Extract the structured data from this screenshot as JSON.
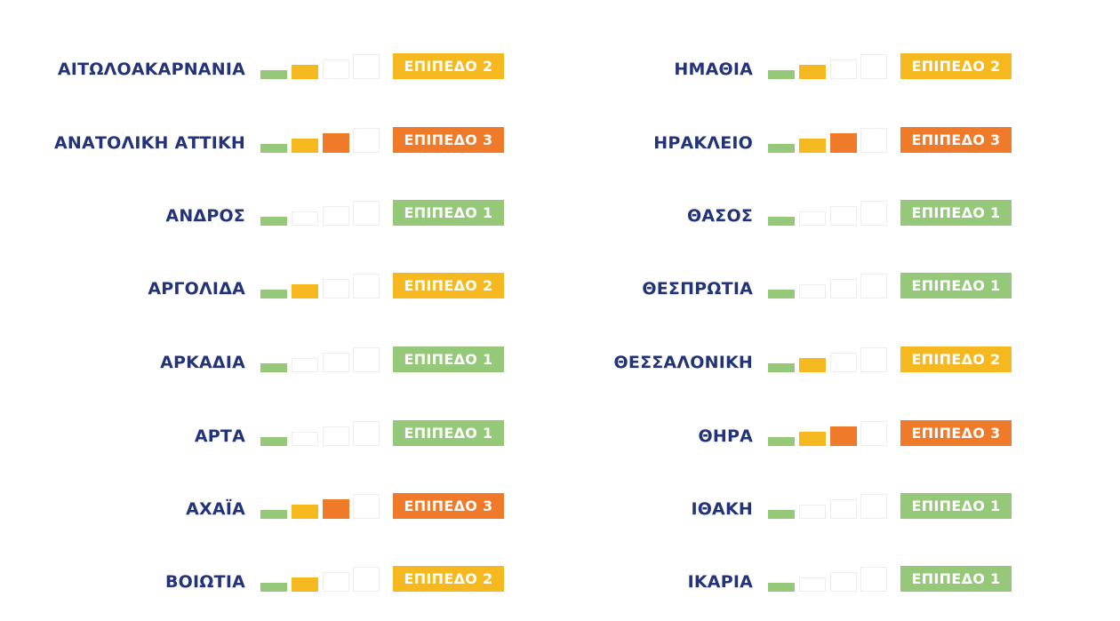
{
  "colors": {
    "region_text": "#23337a",
    "level_1": "#96c87a",
    "level_2": "#f5b81e",
    "level_3": "#ee7a2a",
    "empty_bar_border": "#eeeeee"
  },
  "left_column": [
    {
      "region": "ΑΙΤΩΛΟΑΚΑΡΝΑΝΙΑ",
      "level": 2,
      "badge": "ΕΠΙΠΕΔΟ 2"
    },
    {
      "region": "ΑΝΑΤΟΛΙΚΗ ΑΤΤΙΚΗ",
      "level": 3,
      "badge": "ΕΠΙΠΕΔΟ 3"
    },
    {
      "region": "ΑΝΔΡΟΣ",
      "level": 1,
      "badge": "ΕΠΙΠΕΔΟ 1"
    },
    {
      "region": "ΑΡΓΟΛΙΔΑ",
      "level": 2,
      "badge": "ΕΠΙΠΕΔΟ 2"
    },
    {
      "region": "ΑΡΚΑΔΙΑ",
      "level": 1,
      "badge": "ΕΠΙΠΕΔΟ 1"
    },
    {
      "region": "ΑΡΤΑ",
      "level": 1,
      "badge": "ΕΠΙΠΕΔΟ 1"
    },
    {
      "region": "ΑΧΑΪΑ",
      "level": 3,
      "badge": "ΕΠΙΠΕΔΟ 3"
    },
    {
      "region": "ΒΟΙΩΤΙΑ",
      "level": 2,
      "badge": "ΕΠΙΠΕΔΟ 2"
    }
  ],
  "right_column": [
    {
      "region": "ΗΜΑΘΙΑ",
      "level": 2,
      "badge": "ΕΠΙΠΕΔΟ 2"
    },
    {
      "region": "ΗΡΑΚΛΕΙΟ",
      "level": 3,
      "badge": "ΕΠΙΠΕΔΟ 3"
    },
    {
      "region": "ΘΑΣΟΣ",
      "level": 1,
      "badge": "ΕΠΙΠΕΔΟ 1"
    },
    {
      "region": "ΘΕΣΠΡΩΤΙΑ",
      "level": 1,
      "badge": "ΕΠΙΠΕΔΟ 1"
    },
    {
      "region": "ΘΕΣΣΑΛΟΝΙΚΗ",
      "level": 2,
      "badge": "ΕΠΙΠΕΔΟ 2"
    },
    {
      "region": "ΘΗΡΑ",
      "level": 3,
      "badge": "ΕΠΙΠΕΔΟ 3"
    },
    {
      "region": "ΙΘΑΚΗ",
      "level": 1,
      "badge": "ΕΠΙΠΕΔΟ 1"
    },
    {
      "region": "ΙΚΑΡΙΑ",
      "level": 1,
      "badge": "ΕΠΙΠΕΔΟ 1"
    }
  ]
}
